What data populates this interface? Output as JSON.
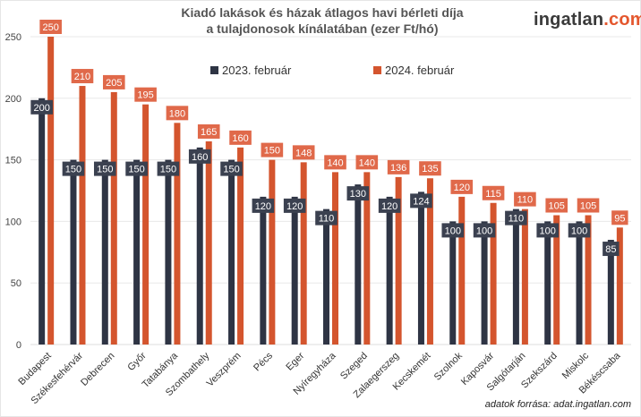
{
  "header": {
    "title_line1": "Kiadó lakások és házak átlagos havi bérleti díja",
    "title_line2": "a tulajdonosok kínálatában (ezer Ft/hó)",
    "logo_main": "ingatlan",
    "logo_suffix": ".com"
  },
  "footer": {
    "source": "adatok forrása: adat.ingatlan.com"
  },
  "colors": {
    "series_2023": "#2e3444",
    "series_2024": "#d4552e",
    "label_2023": "#3b4150",
    "label_2024": "#e0694a"
  },
  "chart_data": {
    "type": "bar",
    "title": "Kiadó lakások és házak átlagos havi bérleti díja a tulajdonosok kínálatában (ezer Ft/hó)",
    "xlabel": "",
    "ylabel": "",
    "ylim": [
      0,
      250
    ],
    "yticks": [
      0,
      50,
      100,
      150,
      200,
      250
    ],
    "grid": true,
    "legend_position": "top-center",
    "categories": [
      "Budapest",
      "Székesfehérvár",
      "Debrecen",
      "Győr",
      "Tatabánya",
      "Szombathely",
      "Veszprém",
      "Pécs",
      "Eger",
      "Nyíregyháza",
      "Szeged",
      "Zalaegerszeg",
      "Kecskemét",
      "Szolnok",
      "Kaposvár",
      "Salgótarján",
      "Szekszárd",
      "Miskolc",
      "Békéscsaba"
    ],
    "series": [
      {
        "name": "2023. február",
        "values": [
          200,
          150,
          150,
          150,
          150,
          160,
          150,
          120,
          120,
          110,
          130,
          120,
          124,
          100,
          100,
          110,
          100,
          100,
          85
        ]
      },
      {
        "name": "2024. február",
        "values": [
          250,
          210,
          205,
          195,
          180,
          165,
          160,
          150,
          148,
          140,
          140,
          136,
          135,
          120,
          115,
          110,
          105,
          105,
          95
        ]
      }
    ]
  }
}
